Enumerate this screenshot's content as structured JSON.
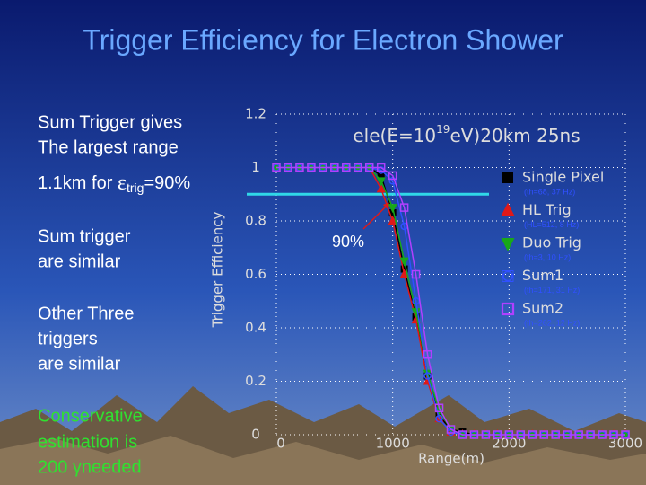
{
  "slide": {
    "title": "Trigger Efficiency for Electron Shower",
    "lines": [
      "Sum Trigger gives",
      "The largest range"
    ],
    "range_line": [
      "1.1km for ",
      "ε",
      "trig",
      "=90%"
    ],
    "similar_1": [
      "Sum trigger",
      "are similar"
    ],
    "similar_2": [
      "Other Three",
      "triggers",
      "are similar"
    ],
    "conservative": [
      "Conservative",
      "estimation is",
      "200 γneeded"
    ]
  },
  "chart_data": {
    "type": "line",
    "title": [
      "ele(E=10",
      "19",
      "eV)20km 25ns"
    ],
    "x_label": "Range(m)",
    "y_label": "Trigger Efficiency",
    "xlim": [
      0,
      3000
    ],
    "xticks": [
      0,
      1000,
      2000,
      3000
    ],
    "ylim": [
      0,
      1.2
    ],
    "yticks": [
      0,
      0.2,
      0.4,
      0.6,
      0.8,
      1,
      1.2
    ],
    "grid": true,
    "hline": 0.9,
    "hline_color": "#30d8e8",
    "annotation": "90%",
    "x": [
      0,
      100,
      200,
      300,
      400,
      500,
      600,
      700,
      800,
      900,
      1000,
      1100,
      1200,
      1300,
      1400,
      1500,
      1600,
      1700,
      1800,
      1900,
      2000,
      2100,
      2200,
      2300,
      2400,
      2500,
      2600,
      2700,
      2800,
      2900,
      3000
    ],
    "series": [
      {
        "name": "Single Pixel",
        "note": "(th=68, 37 Hz)",
        "color": "#000000",
        "marker": "square",
        "values": [
          1,
          1,
          1,
          1,
          1,
          1,
          1,
          1,
          1,
          0.97,
          0.83,
          0.62,
          0.44,
          0.22,
          0.07,
          0.02,
          0.01,
          0,
          0,
          0,
          0,
          0,
          0,
          0,
          0,
          0,
          0,
          0,
          0,
          0,
          0
        ]
      },
      {
        "name": "HL Trig",
        "note": "(HL=512, 8 Hz)",
        "color": "#e01818",
        "marker": "triangle-up",
        "values": [
          1,
          1,
          1,
          1,
          1,
          1,
          1,
          1,
          1,
          0.92,
          0.8,
          0.6,
          0.43,
          0.2,
          0.06,
          0.01,
          0,
          0,
          0,
          0,
          0,
          0,
          0,
          0,
          0,
          0,
          0,
          0,
          0,
          0,
          0
        ]
      },
      {
        "name": "Duo Trig",
        "note": "(th=3, 10 Hz)",
        "color": "#18a818",
        "marker": "triangle-down",
        "values": [
          1,
          1,
          1,
          1,
          1,
          1,
          1,
          1,
          1,
          0.95,
          0.85,
          0.65,
          0.46,
          0.23,
          0.09,
          0.02,
          0,
          0,
          0,
          0,
          0,
          0,
          0,
          0,
          0,
          0,
          0,
          0,
          0,
          0,
          0
        ]
      },
      {
        "name": "Sum1",
        "note": "(th=171, 31 Hz)",
        "color": "#3050ff",
        "marker": "circle",
        "values": [
          1,
          1,
          1,
          1,
          1,
          1,
          1,
          1,
          1,
          0.99,
          0.95,
          0.78,
          0.5,
          0.22,
          0.06,
          0.01,
          0,
          0,
          0,
          0,
          0,
          0,
          0,
          0,
          0,
          0,
          0,
          0,
          0,
          0,
          0
        ]
      },
      {
        "name": "Sum2",
        "note": "(th=262, 12 Hz)",
        "color": "#b040ff",
        "marker": "open-square",
        "values": [
          1,
          1,
          1,
          1,
          1,
          1,
          1,
          1,
          1,
          1,
          0.97,
          0.85,
          0.6,
          0.3,
          0.1,
          0.02,
          0,
          0,
          0,
          0,
          0,
          0,
          0,
          0,
          0,
          0,
          0,
          0,
          0,
          0,
          0
        ]
      }
    ]
  }
}
